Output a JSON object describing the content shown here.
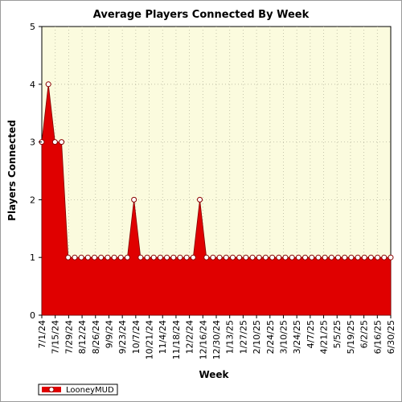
{
  "chart_data": {
    "type": "area",
    "title": "Average Players Connected By Week",
    "xlabel": "Week",
    "ylabel": "Players Connected",
    "ylim": [
      0,
      5
    ],
    "yticks": [
      "0",
      "1",
      "2",
      "3",
      "4",
      "5"
    ],
    "grid": true,
    "legend_position": "bottom-left",
    "x_labels": [
      "7/1/24",
      "7/15/24",
      "7/29/24",
      "8/12/24",
      "8/26/24",
      "9/9/24",
      "9/23/24",
      "10/7/24",
      "10/21/24",
      "11/4/24",
      "11/18/24",
      "12/2/24",
      "12/16/24",
      "12/30/24",
      "1/13/25",
      "1/27/25",
      "2/10/25",
      "2/24/25",
      "3/10/25",
      "3/24/25",
      "4/7/25",
      "4/21/25",
      "5/5/25",
      "5/19/25",
      "6/2/25",
      "6/16/25",
      "6/30/25"
    ],
    "series": [
      {
        "name": "LooneyMUD",
        "color": "#e00000",
        "values": [
          3,
          4,
          3,
          3,
          1,
          1,
          1,
          1,
          1,
          1,
          1,
          1,
          1,
          1,
          2,
          1,
          1,
          1,
          1,
          1,
          1,
          1,
          1,
          1,
          2,
          1,
          1,
          1,
          1,
          1,
          1,
          1,
          1,
          1,
          1,
          1,
          1,
          1,
          1,
          1,
          1,
          1,
          1,
          1,
          1,
          1,
          1,
          1,
          1,
          1,
          1,
          1,
          1,
          1
        ]
      }
    ]
  },
  "colors": {
    "plot_background": "#fbfbde",
    "series_fill": "#e00000"
  }
}
